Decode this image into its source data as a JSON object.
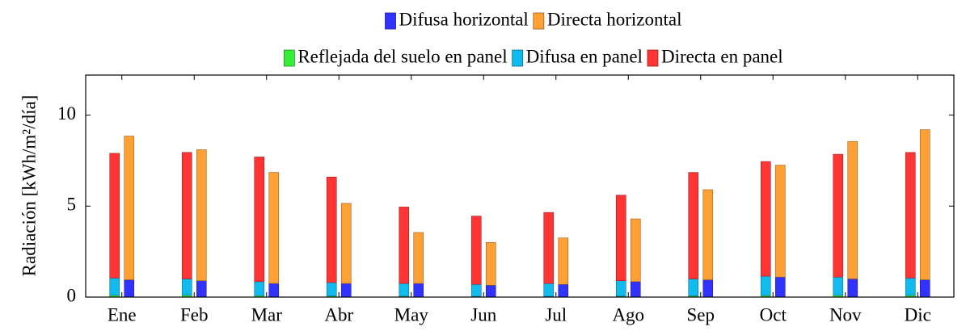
{
  "chart_data": {
    "type": "stacked-bar",
    "y_label": "Radiación [kWh/m²/día]",
    "categories": [
      "Ene",
      "Feb",
      "Mar",
      "Abr",
      "May",
      "Jun",
      "Jul",
      "Ago",
      "Sep",
      "Oct",
      "Nov",
      "Dic"
    ],
    "ylim": [
      0,
      12.2
    ],
    "yticks": [
      0,
      5,
      10
    ],
    "series": [
      {
        "name": "Difusa horizontal",
        "color": "#3232ff",
        "stack": 1,
        "values": [
          0.95,
          0.9,
          0.75,
          0.75,
          0.75,
          0.65,
          0.7,
          0.85,
          0.95,
          1.1,
          1.0,
          0.95
        ]
      },
      {
        "name": "Directa horizontal",
        "color": "#ffa035",
        "stack": 1,
        "values": [
          7.9,
          7.2,
          6.1,
          4.4,
          2.8,
          2.35,
          2.55,
          3.45,
          4.95,
          6.15,
          7.55,
          8.25
        ]
      },
      {
        "name": "Reflejada del suelo en panel",
        "color": "#35ee35",
        "stack": 0,
        "values": [
          0.1,
          0.1,
          0.08,
          0.06,
          0.05,
          0.04,
          0.04,
          0.05,
          0.07,
          0.09,
          0.1,
          0.1
        ]
      },
      {
        "name": "Difusa en panel",
        "color": "#12bbee",
        "stack": 0,
        "values": [
          0.95,
          0.9,
          0.77,
          0.74,
          0.7,
          0.66,
          0.71,
          0.85,
          0.93,
          1.06,
          1.0,
          0.95
        ]
      },
      {
        "name": "Directa en panel",
        "color": "#ff3535",
        "stack": 0,
        "values": [
          6.85,
          6.95,
          6.85,
          5.8,
          4.2,
          3.75,
          3.9,
          4.7,
          5.85,
          6.3,
          6.75,
          6.9
        ]
      }
    ]
  }
}
